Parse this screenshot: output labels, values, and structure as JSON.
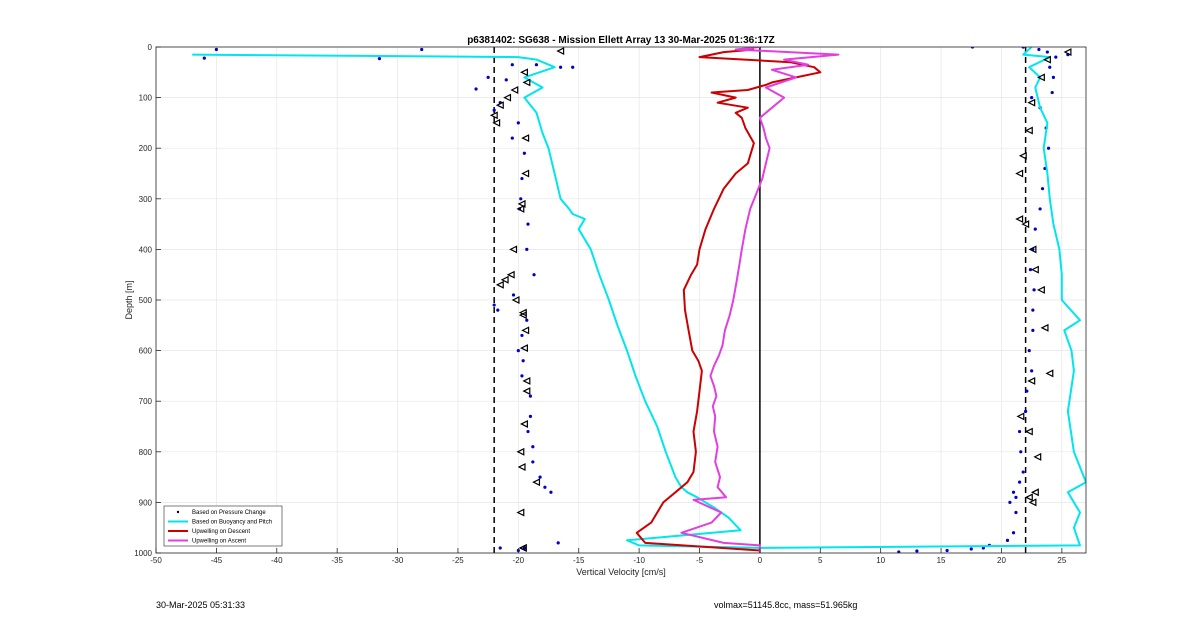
{
  "chart_data": {
    "type": "line",
    "title": "p6381402: SG638 - Mission Ellett Array 13 30-Mar-2025 01:36:17Z",
    "xlabel": "Vertical Velocity [cm/s]",
    "ylabel": "Depth [m]",
    "xlim": [
      -50,
      27
    ],
    "ylim": [
      0,
      1000
    ],
    "y_reversed": true,
    "grid": true,
    "xticks": [
      -50,
      -45,
      -40,
      -35,
      -30,
      -25,
      -20,
      -15,
      -10,
      -5,
      0,
      5,
      10,
      15,
      20,
      25
    ],
    "yticks": [
      0,
      100,
      200,
      300,
      400,
      500,
      600,
      700,
      800,
      900,
      1000
    ],
    "legend_position": "bottom-left",
    "reference_lines": [
      {
        "style": "dashed",
        "x": -22
      },
      {
        "style": "dashed",
        "x": 22
      },
      {
        "style": "solid",
        "x": 0
      }
    ],
    "series": [
      {
        "name": "Based on Pressure Change",
        "color": "#0000cc",
        "kind": "dots",
        "x": [
          -45,
          -46,
          -31.5,
          -28,
          -20.5,
          -18.5,
          -21,
          -22.5,
          -23.5,
          -21.5,
          -22,
          -20,
          -20.5,
          -19.5,
          -19.7,
          -19.8,
          -19.9,
          -19.2,
          -19.3,
          -18.7,
          -20.4,
          -22,
          -21.7,
          -19.3,
          -19.7,
          -20,
          -19.6,
          -19.7,
          -19,
          -19,
          -19.2,
          -18.8,
          -18.8,
          -18.2,
          -17.8,
          -17.3,
          -16.5,
          -15.5,
          -19.5,
          -20,
          -21.5,
          -16.7,
          19,
          18.5,
          17.5,
          15.5,
          13,
          11.5,
          20.5,
          21,
          21.2,
          20.7,
          21,
          21.5,
          21.8,
          21.6,
          21.5,
          22,
          22.1,
          22.5,
          22.3,
          22.6,
          22.6,
          22.7,
          22.4,
          22.6,
          22.8,
          23.2,
          23.4,
          23.6,
          23.9,
          23.7,
          23.2,
          24.2,
          24.3,
          24,
          23.8,
          24.5,
          25.5,
          21.2,
          22.5,
          17.6,
          21.8,
          23.1
        ],
        "y": [
          5,
          22,
          23,
          5,
          35,
          35,
          65,
          60,
          83,
          110,
          125,
          150,
          180,
          210,
          260,
          300,
          320,
          350,
          400,
          450,
          490,
          510,
          520,
          540,
          570,
          600,
          620,
          650,
          690,
          730,
          760,
          790,
          820,
          850,
          870,
          880,
          40,
          40,
          990,
          995,
          990,
          980,
          985,
          990,
          992,
          995,
          996,
          998,
          975,
          960,
          920,
          900,
          880,
          860,
          840,
          800,
          760,
          720,
          680,
          640,
          600,
          560,
          520,
          480,
          440,
          400,
          360,
          320,
          280,
          240,
          200,
          160,
          120,
          90,
          60,
          40,
          10,
          20,
          15,
          890,
          100,
          0,
          0,
          5
        ]
      },
      {
        "name": "Based on Buoyancy and Pitch",
        "color": "#00e5ee",
        "kind": "line",
        "x": [
          -47,
          -20,
          -18.5,
          -17,
          -19.5,
          -18,
          -19.5,
          -18.5,
          -18,
          -17.5,
          -17,
          -16.5,
          -15.8,
          -15.5,
          -14.5,
          -15,
          -14,
          -13.3,
          -12.5,
          -11.8,
          -11,
          -10.3,
          -9.5,
          -8.5,
          -7.8,
          -7,
          -6.5,
          -6,
          -5.2,
          -4.5,
          -3.8,
          -3.2,
          -2.6,
          -2,
          -1.6,
          -11,
          -10,
          0,
          26.5,
          26,
          26.5,
          25.5,
          27,
          26,
          25.5,
          26,
          25.8,
          25.2,
          26.5,
          25,
          25,
          24.8,
          24.3,
          24,
          23.8,
          23.5,
          23.8,
          23.2,
          23,
          22.8,
          23.2,
          22.3,
          24,
          21.8,
          22.5
        ],
        "y": [
          15,
          20,
          25,
          40,
          60,
          80,
          100,
          130,
          170,
          200,
          250,
          300,
          320,
          330,
          340,
          360,
          400,
          450,
          500,
          550,
          600,
          650,
          700,
          750,
          800,
          850,
          870,
          880,
          890,
          900,
          910,
          920,
          930,
          945,
          955,
          975,
          985,
          990,
          985,
          950,
          920,
          880,
          860,
          800,
          720,
          640,
          600,
          560,
          540,
          500,
          450,
          400,
          350,
          300,
          250,
          200,
          150,
          120,
          100,
          80,
          60,
          40,
          20,
          15,
          0
        ]
      },
      {
        "name": "Upwelling on Descent",
        "color": "#cc0000",
        "kind": "line",
        "x": [
          -0.5,
          -3,
          -5,
          2.5,
          4.5,
          5,
          3,
          2,
          1,
          0.5,
          -1,
          -4,
          -2,
          -3.5,
          -1,
          -2,
          -1.5,
          -1.2,
          -0.5,
          -1,
          -2,
          -3,
          -3.8,
          -4.5,
          -5,
          -5.2,
          -5.7,
          -6.3,
          -6.2,
          -5.9,
          -5.6,
          -5.1,
          -4.8,
          -5,
          -5.2,
          -5.5,
          -5.3,
          -5.5,
          -6,
          -7,
          -8,
          -9,
          -10.2,
          -9.5,
          0
        ],
        "y": [
          5,
          10,
          20,
          30,
          40,
          50,
          60,
          65,
          70,
          75,
          85,
          90,
          100,
          110,
          120,
          130,
          140,
          160,
          190,
          230,
          250,
          280,
          320,
          360,
          400,
          430,
          450,
          480,
          520,
          560,
          600,
          620,
          640,
          680,
          720,
          760,
          800,
          840,
          860,
          880,
          900,
          940,
          960,
          980,
          995
        ]
      },
      {
        "name": "Upwelling on Ascent",
        "color": "#e040e0",
        "kind": "line",
        "x": [
          0,
          -2,
          6.5,
          2,
          4,
          1,
          3,
          0.5,
          2,
          1,
          0,
          0.3,
          0.5,
          0.8,
          0.5,
          0.2,
          -0.3,
          -0.8,
          -1.2,
          -1.5,
          -1.7,
          -1.9,
          -2.2,
          -2.5,
          -2.9,
          -3.1,
          -3.4,
          -3.8,
          -4.1,
          -3.8,
          -3.6,
          -3.9,
          -3.7,
          -3.8,
          -3.5,
          -3.7,
          -3.3,
          -3.5,
          -2.8,
          -5.5,
          -3.2,
          -4,
          -6.5,
          -3,
          0,
          0
        ],
        "y": [
          0,
          5,
          15,
          25,
          35,
          45,
          60,
          80,
          100,
          120,
          140,
          160,
          180,
          200,
          230,
          260,
          290,
          320,
          360,
          400,
          430,
          460,
          500,
          530,
          560,
          590,
          610,
          630,
          650,
          670,
          690,
          710,
          730,
          760,
          790,
          820,
          850,
          870,
          890,
          895,
          920,
          940,
          960,
          980,
          985,
          1000
        ]
      },
      {
        "name": "",
        "color": "#000000",
        "kind": "triangles",
        "x": [
          -16.5,
          -19.5,
          -19.3,
          -20.3,
          -20.9,
          -21.5,
          -22,
          -21.8,
          -19.4,
          -19.4,
          -19.7,
          -19.8,
          -20.4,
          -20.6,
          -21.1,
          -21.5,
          -20.2,
          -19.6,
          -19.6,
          -19.4,
          -19.5,
          -19.3,
          -19.3,
          -19.5,
          -19.8,
          -19.7,
          -18.5,
          -19.8,
          -19.6,
          -19.6,
          23.8,
          23.3,
          22.5,
          22.3,
          21.8,
          21.5,
          21.5,
          22,
          22.6,
          22.8,
          23.3,
          23.6,
          24,
          22.5,
          21.6,
          22.3,
          23,
          22.8,
          22.3,
          22.6,
          25.5
        ],
        "y": [
          8,
          50,
          70,
          85,
          100,
          115,
          135,
          150,
          180,
          250,
          310,
          320,
          400,
          450,
          460,
          470,
          500,
          525,
          530,
          560,
          595,
          660,
          680,
          745,
          800,
          830,
          860,
          920,
          990,
          990,
          25,
          60,
          110,
          165,
          215,
          250,
          340,
          350,
          400,
          440,
          480,
          555,
          645,
          660,
          730,
          760,
          810,
          880,
          890,
          900,
          10
        ]
      }
    ],
    "legend_entries": [
      {
        "label": "Based on Pressure Change",
        "color": "#000000",
        "marker": "dot"
      },
      {
        "label": "Based on Buoyancy and Pitch",
        "color": "#00e5ee",
        "marker": "line"
      },
      {
        "label": "Upwelling on Descent",
        "color": "#cc0000",
        "marker": "line"
      },
      {
        "label": "Upwelling on Ascent",
        "color": "#e040e0",
        "marker": "line"
      }
    ]
  },
  "footer": {
    "left": "30-Mar-2025 05:31:33",
    "right": "volmax=51145.8cc, mass=51.965kg"
  }
}
